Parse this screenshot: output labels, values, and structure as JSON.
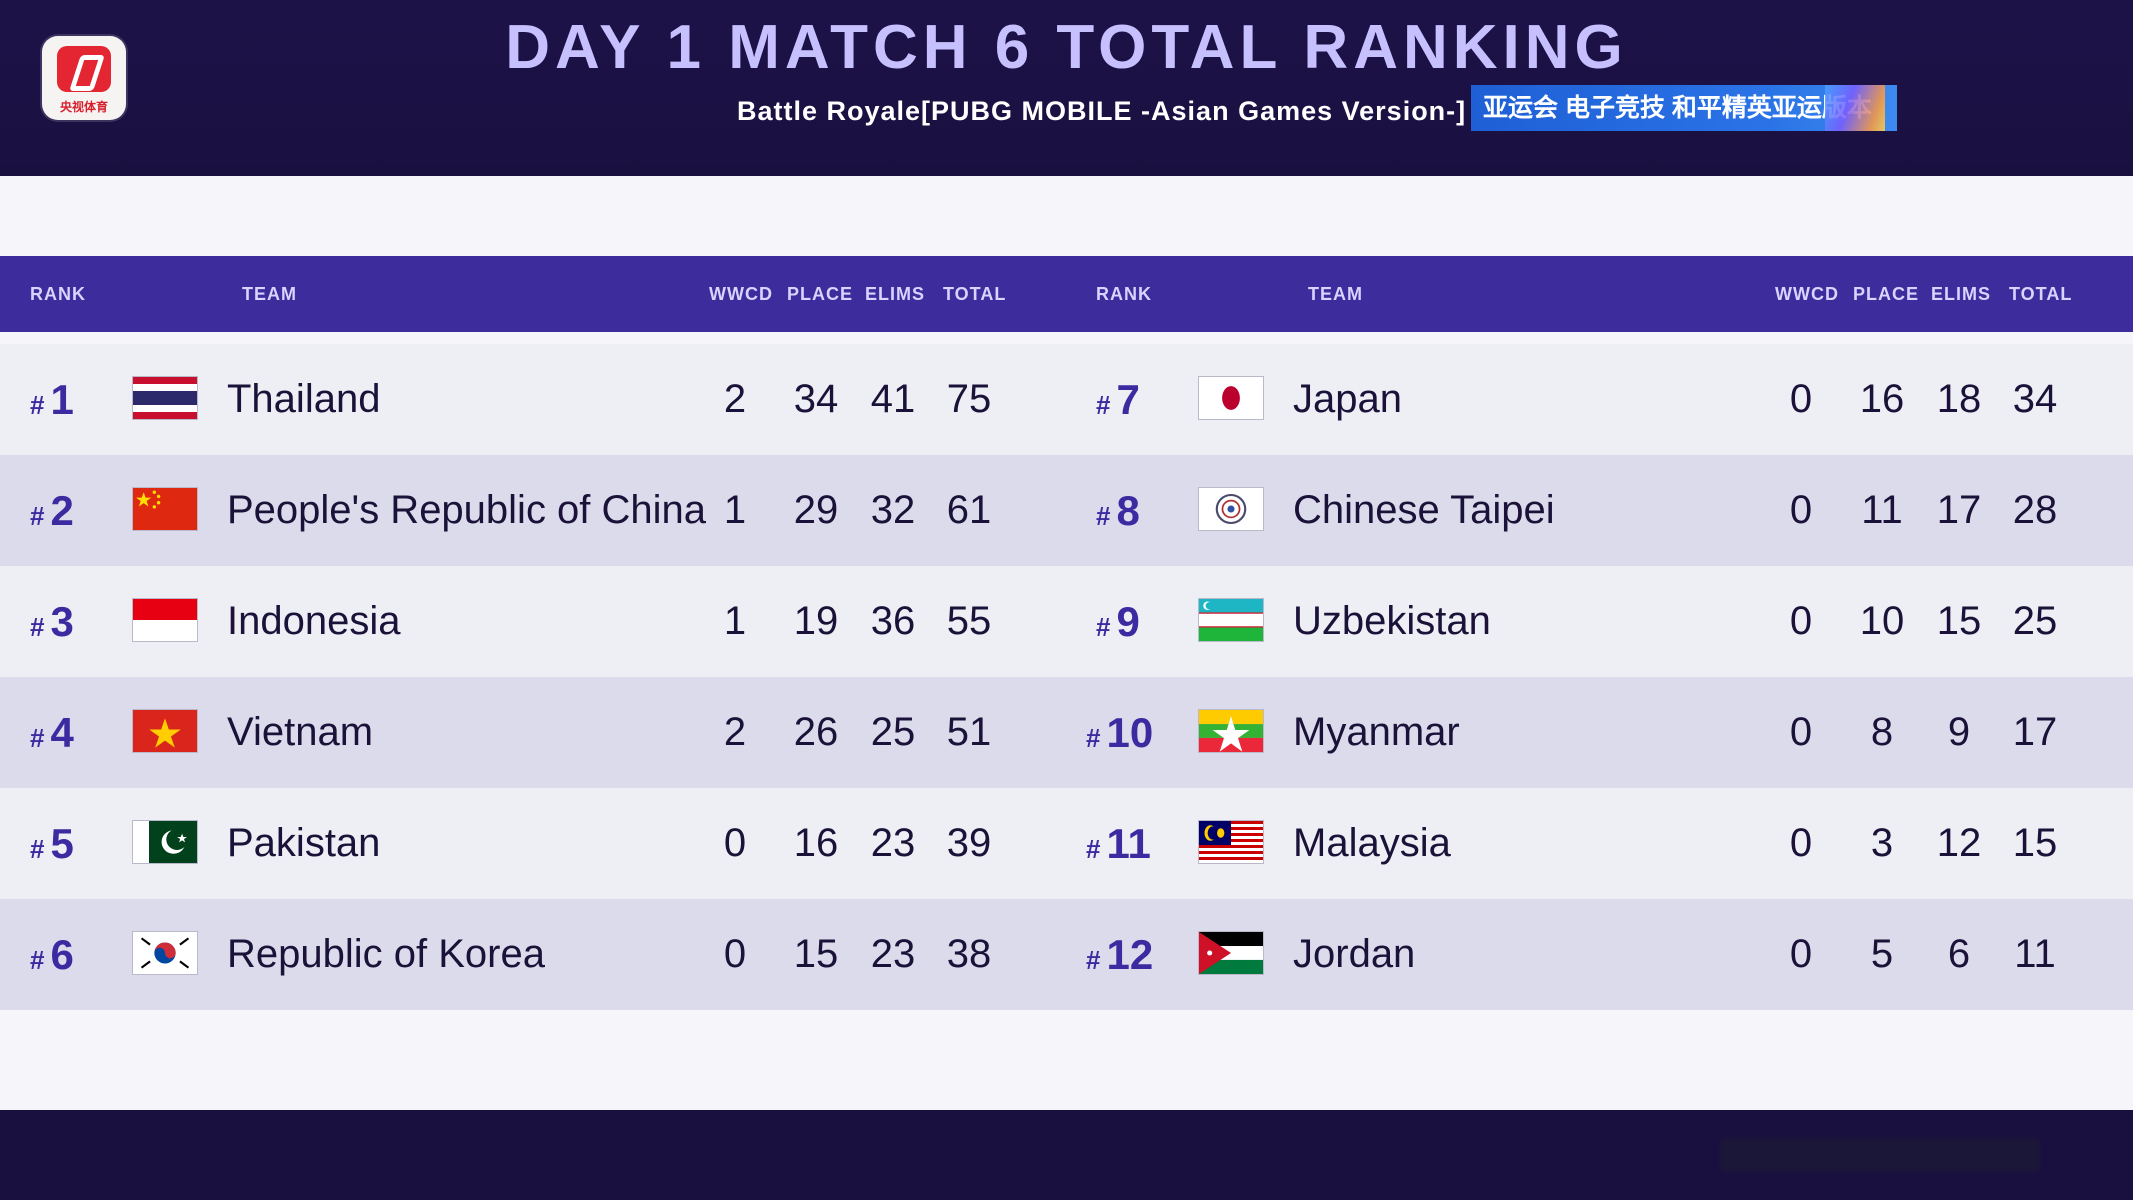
{
  "header": {
    "title": "DAY 1 MATCH 6 TOTAL RANKING",
    "subtitle": "Battle Royale[PUBG MOBILE -Asian Games Version-]",
    "badge": "亚运会 电子竞技 和平精英亚运版本",
    "logo_text": "央视体育"
  },
  "columns": {
    "rank": "RANK",
    "team": "TEAM",
    "wwcd": "WWCD",
    "place": "PLACE",
    "elims": "ELIMS",
    "total": "TOTAL"
  },
  "hash": "#",
  "rows_left": [
    {
      "rank": "1",
      "team": "Thailand",
      "flag": "thailand-flag",
      "wwcd": "2",
      "place": "34",
      "elims": "41",
      "total": "75"
    },
    {
      "rank": "2",
      "team": "People's Republic of China",
      "flag": "china-flag",
      "wwcd": "1",
      "place": "29",
      "elims": "32",
      "total": "61"
    },
    {
      "rank": "3",
      "team": "Indonesia",
      "flag": "indonesia-flag",
      "wwcd": "1",
      "place": "19",
      "elims": "36",
      "total": "55"
    },
    {
      "rank": "4",
      "team": "Vietnam",
      "flag": "vietnam-flag",
      "wwcd": "2",
      "place": "26",
      "elims": "25",
      "total": "51"
    },
    {
      "rank": "5",
      "team": "Pakistan",
      "flag": "pakistan-flag",
      "wwcd": "0",
      "place": "16",
      "elims": "23",
      "total": "39"
    },
    {
      "rank": "6",
      "team": "Republic of Korea",
      "flag": "korea-flag",
      "wwcd": "0",
      "place": "15",
      "elims": "23",
      "total": "38"
    }
  ],
  "rows_right": [
    {
      "rank": "7",
      "team": "Japan",
      "flag": "japan-flag",
      "wwcd": "0",
      "place": "16",
      "elims": "18",
      "total": "34"
    },
    {
      "rank": "8",
      "team": "Chinese Taipei",
      "flag": "chinese-taipei-flag",
      "wwcd": "0",
      "place": "11",
      "elims": "17",
      "total": "28"
    },
    {
      "rank": "9",
      "team": "Uzbekistan",
      "flag": "uzbekistan-flag",
      "wwcd": "0",
      "place": "10",
      "elims": "15",
      "total": "25"
    },
    {
      "rank": "10",
      "team": "Myanmar",
      "flag": "myanmar-flag",
      "wwcd": "0",
      "place": "8",
      "elims": "9",
      "total": "17"
    },
    {
      "rank": "11",
      "team": "Malaysia",
      "flag": "malaysia-flag",
      "wwcd": "0",
      "place": "3",
      "elims": "12",
      "total": "15"
    },
    {
      "rank": "12",
      "team": "Jordan",
      "flag": "jordan-flag",
      "wwcd": "0",
      "place": "5",
      "elims": "6",
      "total": "11"
    }
  ],
  "colors": {
    "header_bg": "#1a1040",
    "title": "#c7c0ff",
    "table_header": "#3d2c9b",
    "rank_text": "#3b2aa0",
    "row_light": "#eeeef5",
    "row_dark": "#dcdbec"
  }
}
